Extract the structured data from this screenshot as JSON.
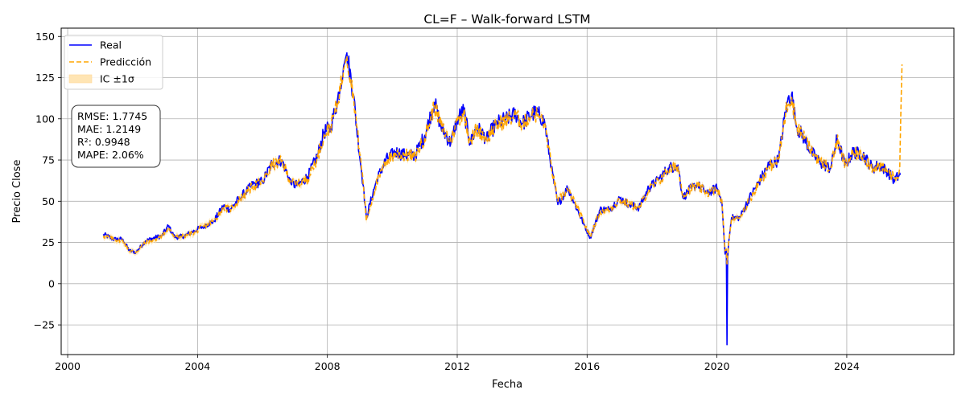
{
  "chart_data": {
    "type": "line",
    "title": "CL=F – Walk-forward LSTM",
    "xlabel": "Fecha",
    "ylabel": "Precio Close",
    "xlim": [
      1999.8,
      2027.3
    ],
    "ylim": [
      -43,
      155
    ],
    "x_ticks": [
      2000,
      2004,
      2008,
      2012,
      2016,
      2020,
      2024
    ],
    "y_ticks": [
      -25,
      0,
      25,
      50,
      75,
      100,
      125,
      150
    ],
    "y_tick_labels": [
      "−25",
      "0",
      "25",
      "50",
      "75",
      "100",
      "125",
      "150"
    ],
    "grid": true,
    "legend_position": "top-left",
    "legend": {
      "real": "Real",
      "pred": "Predicción",
      "band": "IC ±1σ"
    },
    "metrics": {
      "rmse": "RMSE: 1.7745",
      "mae": "MAE: 1.2149",
      "r2": "R²: 0.9948",
      "mape": "MAPE: 2.06%"
    },
    "colors": {
      "real": "#0000ff",
      "pred": "#ffa500",
      "band": "#ffe5b4",
      "grid": "#b0b0b0"
    },
    "series": [
      {
        "name": "Real",
        "x": [
          2001.1,
          2001.4,
          2001.7,
          2001.9,
          2002.1,
          2002.4,
          2002.7,
          2002.9,
          2003.1,
          2003.3,
          2003.6,
          2003.9,
          2004.2,
          2004.5,
          2004.8,
          2005.0,
          2005.3,
          2005.7,
          2006.0,
          2006.3,
          2006.6,
          2006.9,
          2007.1,
          2007.4,
          2007.7,
          2007.9,
          2008.1,
          2008.3,
          2008.5,
          2008.6,
          2008.8,
          2008.9,
          2009.1,
          2009.2,
          2009.5,
          2009.8,
          2010.1,
          2010.4,
          2010.7,
          2011.0,
          2011.3,
          2011.5,
          2011.8,
          2012.0,
          2012.2,
          2012.4,
          2012.6,
          2012.9,
          2013.2,
          2013.5,
          2013.8,
          2014.0,
          2014.3,
          2014.5,
          2014.7,
          2014.9,
          2015.1,
          2015.4,
          2015.7,
          2015.9,
          2016.1,
          2016.4,
          2016.7,
          2017.0,
          2017.3,
          2017.6,
          2017.9,
          2018.2,
          2018.5,
          2018.8,
          2018.95,
          2019.2,
          2019.4,
          2019.7,
          2020.0,
          2020.15,
          2020.25,
          2020.29,
          2020.31,
          2020.33,
          2020.36,
          2020.45,
          2020.7,
          2021.0,
          2021.3,
          2021.6,
          2021.9,
          2022.15,
          2022.3,
          2022.45,
          2022.7,
          2022.9,
          2023.2,
          2023.5,
          2023.7,
          2023.95,
          2024.2,
          2024.5,
          2024.8,
          2025.0,
          2025.25,
          2025.45,
          2025.65
        ],
        "values": [
          30,
          27,
          27,
          20,
          19,
          26,
          28,
          29,
          35,
          28,
          29,
          32,
          35,
          38,
          47,
          45,
          52,
          60,
          62,
          73,
          75,
          60,
          60,
          65,
          78,
          92,
          95,
          110,
          132,
          140,
          115,
          95,
          60,
          40,
          62,
          75,
          80,
          78,
          78,
          90,
          110,
          95,
          85,
          100,
          105,
          85,
          95,
          88,
          97,
          100,
          103,
          97,
          103,
          104,
          97,
          70,
          48,
          58,
          45,
          36,
          28,
          45,
          45,
          52,
          48,
          46,
          58,
          63,
          70,
          72,
          52,
          58,
          60,
          55,
          58,
          50,
          18,
          20,
          -37,
          15,
          25,
          40,
          40,
          52,
          62,
          72,
          75,
          110,
          115,
          95,
          88,
          80,
          73,
          70,
          88,
          72,
          80,
          78,
          70,
          72,
          68,
          63,
          66
        ]
      },
      {
        "name": "Predicción",
        "x": [
          2001.1,
          2001.4,
          2001.7,
          2001.9,
          2002.1,
          2002.4,
          2002.7,
          2002.9,
          2003.1,
          2003.3,
          2003.6,
          2003.9,
          2004.2,
          2004.5,
          2004.8,
          2005.0,
          2005.3,
          2005.7,
          2006.0,
          2006.3,
          2006.6,
          2006.9,
          2007.1,
          2007.4,
          2007.7,
          2007.9,
          2008.1,
          2008.3,
          2008.5,
          2008.6,
          2008.8,
          2008.9,
          2009.1,
          2009.2,
          2009.5,
          2009.8,
          2010.1,
          2010.4,
          2010.7,
          2011.0,
          2011.3,
          2011.5,
          2011.8,
          2012.0,
          2012.2,
          2012.4,
          2012.6,
          2012.9,
          2013.2,
          2013.5,
          2013.8,
          2014.0,
          2014.3,
          2014.5,
          2014.7,
          2014.9,
          2015.1,
          2015.4,
          2015.7,
          2015.9,
          2016.1,
          2016.4,
          2016.7,
          2017.0,
          2017.3,
          2017.6,
          2017.9,
          2018.2,
          2018.5,
          2018.8,
          2018.95,
          2019.2,
          2019.4,
          2019.7,
          2020.0,
          2020.15,
          2020.25,
          2020.29,
          2020.31,
          2020.33,
          2020.36,
          2020.45,
          2020.7,
          2021.0,
          2021.3,
          2021.6,
          2021.9,
          2022.15,
          2022.3,
          2022.45,
          2022.7,
          2022.9,
          2023.2,
          2023.5,
          2023.7,
          2023.95,
          2024.2,
          2024.5,
          2024.8,
          2025.0,
          2025.25,
          2025.45,
          2025.6,
          2025.63,
          2025.66,
          2025.7
        ],
        "values": [
          29,
          27,
          26,
          20,
          19,
          25,
          27,
          29,
          34,
          28,
          29,
          31,
          35,
          38,
          46,
          45,
          51,
          59,
          62,
          72,
          74,
          61,
          60,
          64,
          77,
          91,
          95,
          109,
          130,
          138,
          116,
          96,
          62,
          38,
          60,
          74,
          79,
          78,
          77,
          89,
          108,
          96,
          86,
          99,
          104,
          86,
          94,
          88,
          96,
          99,
          102,
          97,
          102,
          103,
          97,
          71,
          50,
          57,
          46,
          37,
          29,
          44,
          45,
          51,
          48,
          46,
          57,
          62,
          69,
          71,
          53,
          58,
          59,
          55,
          57,
          51,
          20,
          21,
          12,
          17,
          25,
          39,
          40,
          51,
          61,
          71,
          75,
          108,
          113,
          96,
          88,
          81,
          74,
          70,
          87,
          72,
          79,
          78,
          70,
          71,
          68,
          64,
          66,
          70,
          100,
          133
        ]
      }
    ],
    "band_halfwidth": 1.8
  }
}
